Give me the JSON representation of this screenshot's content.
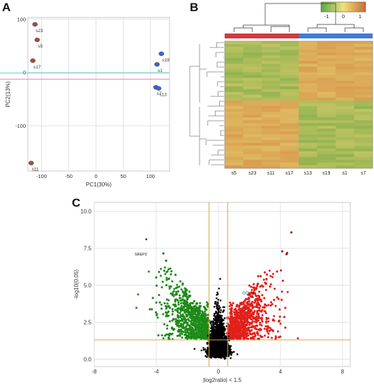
{
  "panels": {
    "a": "A",
    "b": "B",
    "c": "C"
  },
  "chart_data": [
    {
      "type": "scatter",
      "panel": "A",
      "xlabel": "PC1(30%)",
      "ylabel": "PC2(13%)",
      "xlim": [
        -125,
        135
      ],
      "ylim": [
        -185,
        103
      ],
      "xticks": [
        -100,
        -50,
        0,
        50,
        100
      ],
      "yticks": [
        100,
        0,
        -100
      ],
      "grid": true,
      "groups": [
        {
          "color": "#a0513d",
          "points": [
            {
              "label": "s23",
              "x": -112,
              "y": 90
            },
            {
              "label": "s5",
              "x": -108,
              "y": 61
            },
            {
              "label": "s17",
              "x": -116,
              "y": 22
            },
            {
              "label": "s11",
              "x": -119,
              "y": -170
            }
          ]
        },
        {
          "color": "#3f63d6",
          "points": [
            {
              "label": "s19",
              "x": 120,
              "y": 35
            },
            {
              "label": "s1",
              "x": 112,
              "y": 15
            },
            {
              "label": "s7",
              "x": 110,
              "y": -28
            },
            {
              "label": "s13",
              "x": 115,
              "y": -30
            }
          ]
        }
      ]
    },
    {
      "type": "heatmap",
      "panel": "B",
      "columns": [
        "s5",
        "s23",
        "s11",
        "s17",
        "s13",
        "s19",
        "s1",
        "s7"
      ],
      "groups": [
        {
          "color": "#d23a3a",
          "columns": [
            "s5",
            "s23",
            "s11",
            "s17"
          ]
        },
        {
          "color": "#3f7bd6",
          "columns": [
            "s13",
            "s19",
            "s1",
            "s7"
          ]
        }
      ],
      "colorbar": {
        "ticks": [
          "-1",
          "0",
          "1"
        ],
        "low": "#58a845",
        "mid": "#f2e27a",
        "high": "#c76a36"
      },
      "block_pattern": {
        "top_cluster": {
          "group1": "green",
          "group2": "orange"
        },
        "bottom_cluster": {
          "group1": "orange",
          "group2": "green"
        }
      }
    },
    {
      "type": "scatter",
      "panel": "C",
      "xlabel": "|log2ratio| < 1.5",
      "ylabel": "-log10(0.05)",
      "xlim": [
        -8,
        8.5
      ],
      "ylim": [
        -0.5,
        10.6
      ],
      "xticks": [
        -8,
        -4,
        0,
        4,
        8
      ],
      "yticks": [
        0.0,
        2.5,
        5.0,
        7.5,
        10.0
      ],
      "grid": true,
      "threshold_lines": {
        "x": [
          -0.6,
          0.6
        ],
        "y": 1.3
      },
      "series": [
        {
          "color": "#1e8a18",
          "side": "down"
        },
        {
          "color": "#e0201a",
          "side": "up"
        },
        {
          "color": "#000000",
          "side": "not significant"
        }
      ],
      "annotations": [
        "SREP2",
        "CCL22"
      ]
    }
  ]
}
